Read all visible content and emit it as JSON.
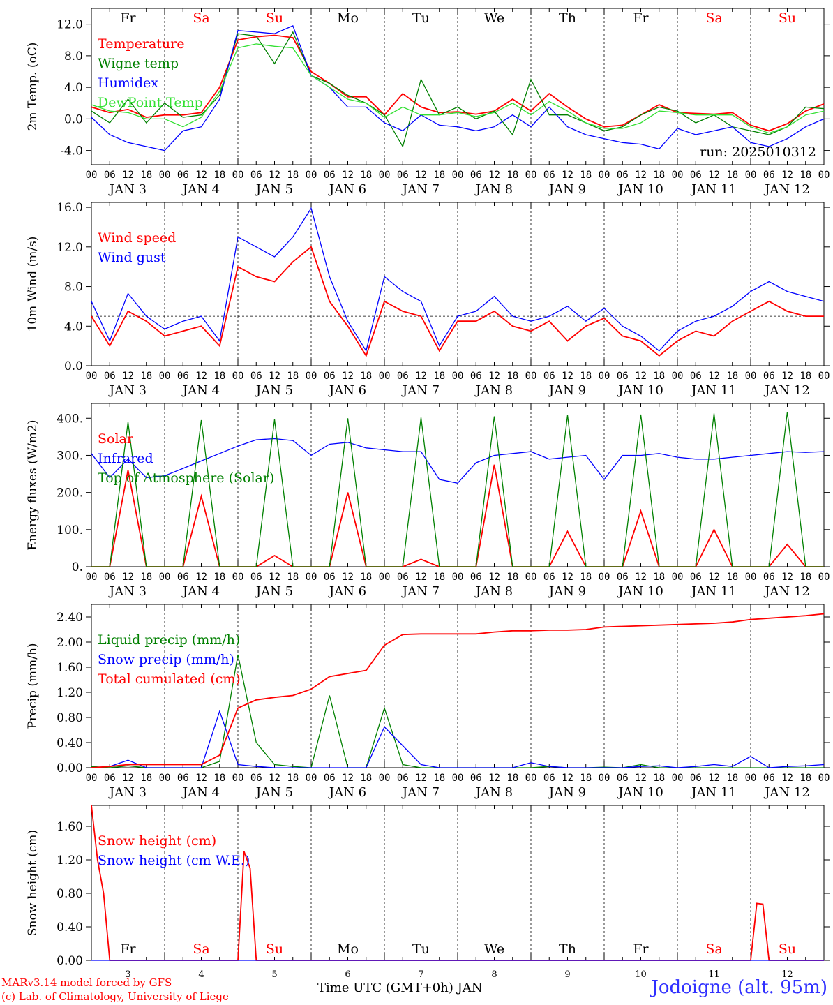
{
  "colors": {
    "red": "#ff0000",
    "green": "#008000",
    "blue": "#0000ff",
    "lightgreen": "#33e033",
    "weekend": "#ff0000",
    "weekday": "#000000"
  },
  "days": [
    {
      "abbr": "Fr",
      "weekend": false,
      "num": "3"
    },
    {
      "abbr": "Sa",
      "weekend": true,
      "num": "4"
    },
    {
      "abbr": "Su",
      "weekend": true,
      "num": "5"
    },
    {
      "abbr": "Mo",
      "weekend": false,
      "num": "6"
    },
    {
      "abbr": "Tu",
      "weekend": false,
      "num": "7"
    },
    {
      "abbr": "We",
      "weekend": false,
      "num": "8"
    },
    {
      "abbr": "Th",
      "weekend": false,
      "num": "9"
    },
    {
      "abbr": "Fr",
      "weekend": false,
      "num": "10"
    },
    {
      "abbr": "Sa",
      "weekend": true,
      "num": "11"
    },
    {
      "abbr": "Su",
      "weekend": true,
      "num": "12"
    }
  ],
  "hour_ticks": [
    "00",
    "06",
    "12",
    "18"
  ],
  "final_hour_tick": "00",
  "date_labels": [
    "JAN 3",
    "JAN 4",
    "JAN 5",
    "JAN 6",
    "JAN 7",
    "JAN 8",
    "JAN 9",
    "JAN 10",
    "JAN 11",
    "JAN 12"
  ],
  "footer": {
    "credit1": "MARv3.14 model forced by GFS",
    "credit2": "(c) Lab. of Climatology, University of Liege",
    "xtitle": "Time UTC (GMT+0h) JAN",
    "station": "Jodoigne (alt. 95m)"
  },
  "chart_data": [
    {
      "type": "line",
      "ylabel": "2m Temp. (oC)",
      "ylim": [
        -5.8,
        14.0
      ],
      "yticks": [
        "-4.0",
        "0.0",
        "4.0",
        "8.0",
        "12.0"
      ],
      "ytick_values": [
        -4,
        0,
        4,
        8,
        12
      ],
      "ref_line": 0,
      "annotation": "run: 2025010312",
      "x_hours": [
        0,
        6,
        12,
        18,
        24,
        30,
        36,
        42,
        48,
        54,
        60,
        66,
        72,
        78,
        84,
        90,
        96,
        102,
        108,
        114,
        120,
        126,
        132,
        138,
        144,
        150,
        156,
        162,
        168,
        174,
        180,
        186,
        192,
        198,
        204,
        210,
        216,
        222,
        228,
        234,
        240
      ],
      "series": [
        {
          "name": "Temperature",
          "color": "red",
          "values": [
            1.5,
            0.8,
            1.2,
            0.2,
            0.5,
            0.5,
            0.8,
            4.0,
            10.0,
            10.4,
            10.6,
            10.3,
            6.0,
            4.5,
            2.8,
            2.8,
            0.5,
            3.2,
            1.5,
            0.8,
            0.9,
            0.6,
            1.0,
            2.5,
            1.0,
            3.2,
            1.5,
            0.0,
            -1.0,
            -0.8,
            0.5,
            1.8,
            0.8,
            0.7,
            0.6,
            0.8,
            -0.8,
            -1.5,
            -0.6,
            1.0,
            1.9
          ]
        },
        {
          "name": "Wigne temp",
          "color": "green",
          "values": [
            1.0,
            -0.5,
            2.5,
            -0.5,
            2.0,
            0.2,
            0.5,
            3.0,
            10.8,
            10.5,
            7.0,
            11.0,
            5.5,
            4.5,
            3.0,
            2.0,
            0.5,
            -3.5,
            5.0,
            0.5,
            1.5,
            0.0,
            1.0,
            -2.0,
            5.0,
            0.5,
            0.5,
            -0.5,
            -1.5,
            -1.0,
            0.5,
            1.5,
            1.0,
            -0.5,
            0.5,
            -1.0,
            -1.5,
            -2.0,
            -1.0,
            1.5,
            1.3
          ]
        },
        {
          "name": "Humidex",
          "color": "blue",
          "values": [
            0.2,
            -2.0,
            -3.0,
            -3.5,
            -4.0,
            -1.5,
            -1.0,
            2.5,
            11.2,
            11.0,
            10.8,
            11.8,
            5.5,
            4.0,
            1.5,
            1.5,
            -0.5,
            -1.5,
            0.5,
            -0.8,
            -1.0,
            -1.5,
            -1.0,
            0.5,
            -1.0,
            1.5,
            -1.0,
            -2.0,
            -2.5,
            -3.0,
            -3.2,
            -3.8,
            -1.2,
            -2.0,
            -1.5,
            -1.0,
            -3.0,
            -3.5,
            -2.5,
            -1.0,
            0.0
          ]
        },
        {
          "name": "DewPoint Temp",
          "color": "lightgreen",
          "values": [
            1.8,
            1.0,
            0.8,
            0.0,
            0.0,
            -1.0,
            0.2,
            3.5,
            9.0,
            9.5,
            9.2,
            9.0,
            5.5,
            4.0,
            2.5,
            2.0,
            0.2,
            1.5,
            0.5,
            0.5,
            0.8,
            0.3,
            0.8,
            2.0,
            0.5,
            2.2,
            1.0,
            -0.5,
            -1.2,
            -1.2,
            -0.5,
            1.0,
            0.8,
            0.5,
            0.5,
            0.5,
            -1.0,
            -1.8,
            -1.0,
            0.5,
            1.0
          ]
        }
      ]
    },
    {
      "type": "line",
      "ylabel": "10m Wind (m/s)",
      "ylim": [
        0,
        16.5
      ],
      "yticks": [
        "0.0",
        "4.0",
        "8.0",
        "12.0",
        "16.0"
      ],
      "ytick_values": [
        0,
        4,
        8,
        12,
        16
      ],
      "ref_line": 5,
      "x_hours": [
        0,
        6,
        12,
        18,
        24,
        30,
        36,
        42,
        48,
        54,
        60,
        66,
        72,
        78,
        84,
        90,
        96,
        102,
        108,
        114,
        120,
        126,
        132,
        138,
        144,
        150,
        156,
        162,
        168,
        174,
        180,
        186,
        192,
        198,
        204,
        210,
        216,
        222,
        228,
        234,
        240
      ],
      "series": [
        {
          "name": "Wind speed",
          "color": "red",
          "values": [
            5.0,
            2.0,
            5.5,
            4.5,
            3.0,
            3.5,
            4.0,
            2.0,
            10.0,
            9.0,
            8.5,
            10.5,
            12.0,
            6.5,
            4.0,
            1.0,
            6.5,
            5.5,
            5.0,
            1.5,
            4.5,
            4.5,
            5.5,
            4.0,
            3.5,
            4.5,
            2.5,
            4.0,
            4.8,
            3.0,
            2.5,
            1.0,
            2.5,
            3.5,
            3.0,
            4.5,
            5.5,
            6.5,
            5.5,
            5.0,
            5.0
          ]
        },
        {
          "name": "Wind gust",
          "color": "blue",
          "values": [
            6.5,
            2.5,
            7.3,
            5.0,
            3.7,
            4.5,
            5.0,
            2.5,
            13.0,
            12.0,
            11.0,
            13.0,
            15.9,
            9.0,
            4.5,
            1.5,
            9.0,
            7.5,
            6.5,
            2.0,
            5.0,
            5.5,
            7.0,
            5.0,
            4.5,
            5.0,
            6.0,
            4.5,
            5.8,
            4.0,
            3.0,
            1.5,
            3.5,
            4.5,
            5.0,
            6.0,
            7.5,
            8.5,
            7.5,
            7.0,
            6.5
          ]
        }
      ]
    },
    {
      "type": "line",
      "ylabel": "Energy fluxes (W/m2)",
      "ylim": [
        0,
        440
      ],
      "yticks": [
        "0.",
        "100.",
        "200.",
        "300.",
        "400."
      ],
      "ytick_values": [
        0,
        100,
        200,
        300,
        400
      ],
      "x_hours": [
        0,
        6,
        12,
        18,
        24,
        30,
        36,
        42,
        48,
        54,
        60,
        66,
        72,
        78,
        84,
        90,
        96,
        102,
        108,
        114,
        120,
        126,
        132,
        138,
        144,
        150,
        156,
        162,
        168,
        174,
        180,
        186,
        192,
        198,
        204,
        210,
        216,
        222,
        228,
        234,
        240
      ],
      "series": [
        {
          "name": "Solar",
          "color": "red",
          "values": [
            0,
            0,
            260,
            0,
            0,
            0,
            190,
            0,
            0,
            0,
            30,
            0,
            0,
            0,
            200,
            0,
            0,
            0,
            20,
            0,
            0,
            0,
            275,
            0,
            0,
            0,
            95,
            0,
            0,
            0,
            150,
            0,
            0,
            0,
            100,
            0,
            0,
            0,
            60,
            0,
            0
          ]
        },
        {
          "name": "Infrared",
          "color": "blue",
          "values": [
            305,
            240,
            290,
            240,
            245,
            265,
            285,
            305,
            325,
            342,
            345,
            340,
            300,
            330,
            335,
            320,
            315,
            310,
            310,
            235,
            225,
            280,
            300,
            305,
            310,
            290,
            295,
            300,
            235,
            300,
            300,
            305,
            295,
            290,
            290,
            295,
            300,
            305,
            310,
            308,
            310
          ]
        },
        {
          "name": "Top of Atmosphere (Solar)",
          "color": "green",
          "values": [
            0,
            0,
            390,
            0,
            0,
            0,
            395,
            0,
            0,
            0,
            397,
            0,
            0,
            0,
            400,
            0,
            0,
            0,
            402,
            0,
            0,
            0,
            405,
            0,
            0,
            0,
            408,
            0,
            0,
            0,
            410,
            0,
            0,
            0,
            413,
            0,
            0,
            0,
            417,
            0,
            0
          ]
        }
      ]
    },
    {
      "type": "line",
      "ylabel": "Precip (mm/h)",
      "ylim": [
        0,
        2.6
      ],
      "yticks": [
        "0.00",
        "0.40",
        "0.80",
        "1.20",
        "1.60",
        "2.00",
        "2.40"
      ],
      "ytick_values": [
        0,
        0.4,
        0.8,
        1.2,
        1.6,
        2.0,
        2.4
      ],
      "x_hours": [
        0,
        6,
        12,
        18,
        24,
        30,
        36,
        42,
        48,
        54,
        60,
        66,
        72,
        78,
        84,
        90,
        96,
        102,
        108,
        114,
        120,
        126,
        132,
        138,
        144,
        150,
        156,
        162,
        168,
        174,
        180,
        186,
        192,
        198,
        204,
        210,
        216,
        222,
        228,
        234,
        240
      ],
      "series": [
        {
          "name": "Liquid precip (mm/h)",
          "color": "green",
          "values": [
            0.02,
            0.0,
            0.03,
            0.0,
            0.0,
            0.0,
            0.0,
            0.1,
            1.8,
            0.4,
            0.05,
            0.02,
            0.0,
            1.15,
            0.0,
            0.0,
            0.95,
            0.05,
            0.0,
            0.0,
            0.0,
            0.0,
            0.0,
            0.0,
            0.0,
            0.02,
            0.0,
            0.0,
            0.01,
            0.0,
            0.05,
            0.0,
            0.0,
            0.0,
            0.0,
            0.0,
            0.0,
            0.0,
            0.0,
            0.0,
            0.0
          ]
        },
        {
          "name": "Snow precip (mm/h)",
          "color": "blue",
          "values": [
            0.0,
            0.02,
            0.12,
            0.0,
            0.0,
            0.0,
            0.0,
            0.9,
            0.05,
            0.02,
            0.0,
            0.0,
            0.0,
            0.0,
            0.0,
            0.0,
            0.65,
            0.35,
            0.05,
            0.0,
            0.0,
            0.0,
            0.0,
            0.0,
            0.08,
            0.02,
            0.0,
            0.0,
            0.0,
            0.0,
            0.02,
            0.03,
            0.0,
            0.02,
            0.05,
            0.02,
            0.18,
            0.0,
            0.02,
            0.03,
            0.05
          ]
        },
        {
          "name": "Total cumulated (cm)",
          "color": "red",
          "values": [
            0.0,
            0.02,
            0.05,
            0.05,
            0.05,
            0.05,
            0.05,
            0.2,
            0.95,
            1.08,
            1.12,
            1.15,
            1.25,
            1.45,
            1.5,
            1.55,
            1.95,
            2.12,
            2.13,
            2.13,
            2.13,
            2.13,
            2.16,
            2.18,
            2.18,
            2.19,
            2.19,
            2.2,
            2.24,
            2.25,
            2.26,
            2.27,
            2.28,
            2.29,
            2.3,
            2.32,
            2.36,
            2.38,
            2.4,
            2.42,
            2.45
          ]
        }
      ]
    },
    {
      "type": "line",
      "ylabel": "Snow height (cm)",
      "ylim": [
        0,
        1.85
      ],
      "yticks": [
        "0.00",
        "0.40",
        "0.80",
        "1.20",
        "1.60"
      ],
      "ytick_values": [
        0,
        0.4,
        0.8,
        1.2,
        1.6
      ],
      "x_hours": [
        0,
        2,
        4,
        6,
        8,
        12,
        24,
        48,
        50,
        52,
        54,
        56,
        60,
        72,
        96,
        120,
        144,
        168,
        192,
        216,
        218,
        220,
        222,
        224,
        240
      ],
      "series": [
        {
          "name": "Snow height (cm)",
          "color": "red",
          "values": [
            1.85,
            1.2,
            0.8,
            0.0,
            0.0,
            0.0,
            0.0,
            0.0,
            1.3,
            1.1,
            0.0,
            0.0,
            0.0,
            0.0,
            0.0,
            0.0,
            0.0,
            0.0,
            0.0,
            0.0,
            0.68,
            0.67,
            0.0,
            0.0,
            0.0
          ]
        },
        {
          "name": "Snow height (cm W.E.)",
          "color": "blue",
          "values": [
            0,
            0,
            0,
            0,
            0,
            0,
            0,
            0,
            0,
            0,
            0,
            0,
            0,
            0,
            0,
            0,
            0,
            0,
            0,
            0,
            0,
            0,
            0,
            0,
            0
          ]
        }
      ]
    }
  ]
}
